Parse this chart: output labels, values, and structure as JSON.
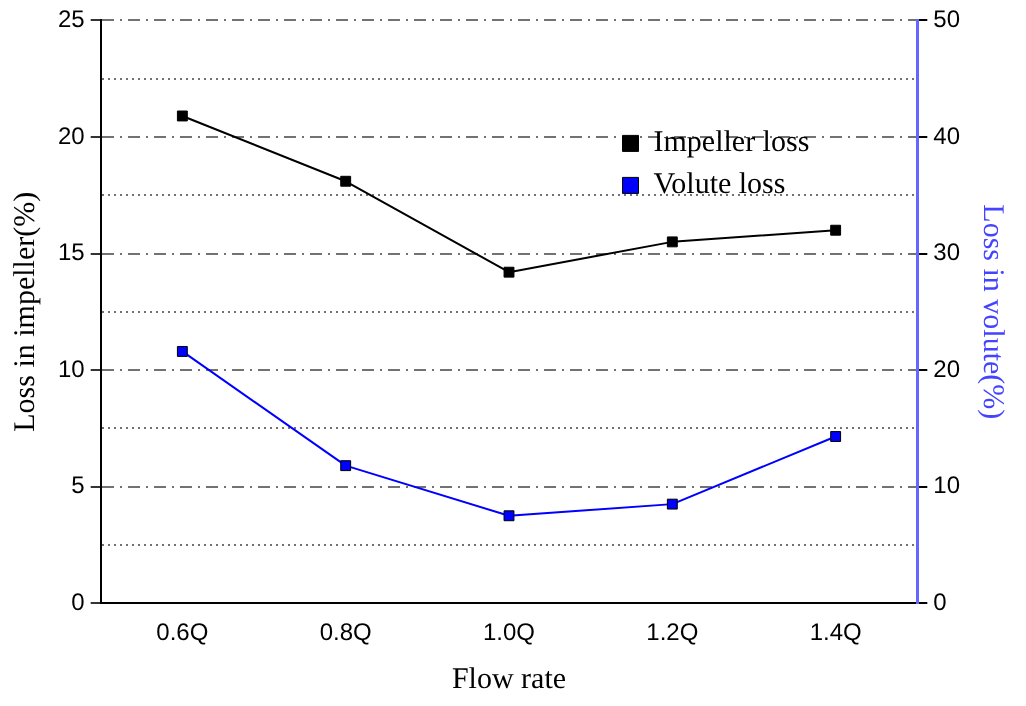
{
  "chart_data": {
    "type": "line",
    "xlabel": "Flow rate",
    "ylabel": "Loss in impeller(%)",
    "y2label": "Loss in volute(%)",
    "categories": [
      "0.6Q",
      "0.8Q",
      "1.0Q",
      "1.2Q",
      "1.4Q"
    ],
    "series": [
      {
        "name": "Impeller loss",
        "color": "#000000",
        "values": [
          20.9,
          18.1,
          14.2,
          15.5,
          16.0
        ]
      },
      {
        "name": "Volute loss",
        "color": "#0000ff",
        "axis": "y2",
        "values": [
          21.6,
          11.8,
          7.5,
          8.5,
          14.3
        ]
      }
    ],
    "ylim": [
      0,
      25
    ],
    "yticks": [
      0,
      {
        "value": 2.5,
        "label": null
      },
      5,
      {
        "value": 7.5,
        "label": null
      },
      10,
      {
        "value": 12.5,
        "label": null
      },
      15,
      {
        "value": 17.5,
        "label": null
      },
      20,
      {
        "value": 22.5,
        "label": null
      },
      25
    ],
    "y2lim": [
      0,
      50
    ],
    "y2ticks": [
      0,
      10,
      20,
      30,
      40,
      50
    ],
    "grid": "y",
    "legend": "top right",
    "marker": "square",
    "line_style": "solid"
  }
}
